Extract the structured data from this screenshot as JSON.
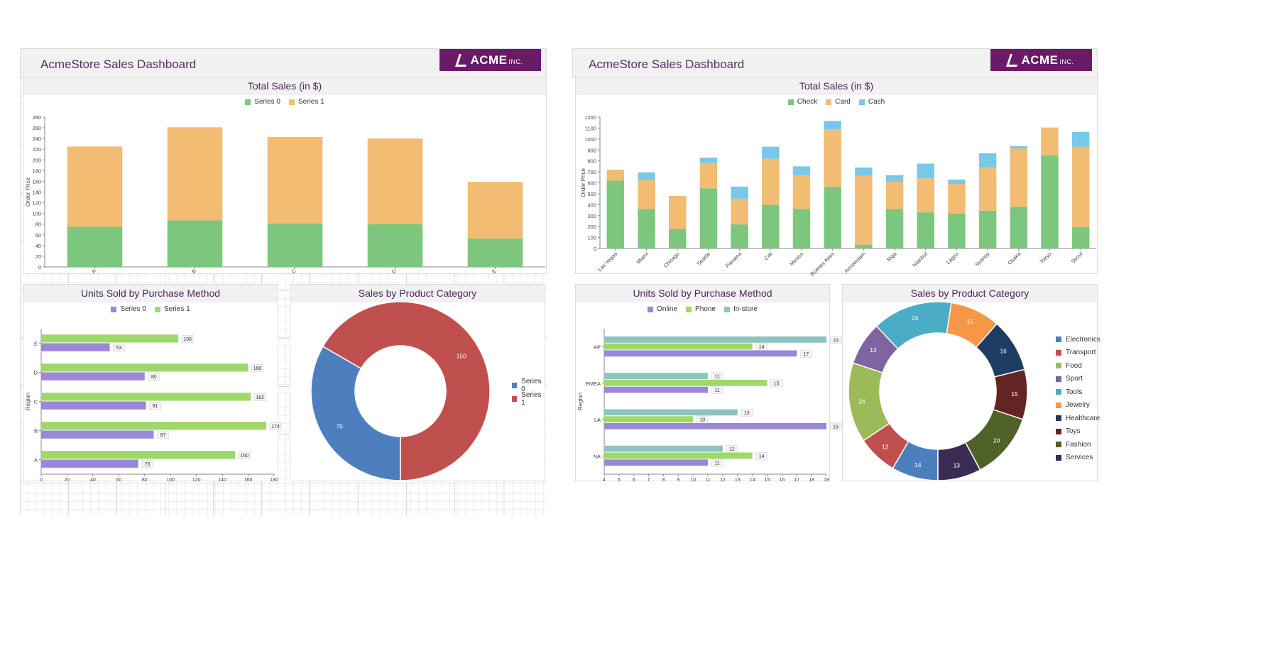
{
  "dashboards": [
    {
      "header": {
        "title": "AcmeStore Sales Dashboard",
        "logo": "ACME",
        "logo_suffix": "INC."
      },
      "total_sales": {
        "title": "Total Sales (in $)",
        "chart_data": {
          "type": "bar",
          "stacked": true,
          "categories": [
            "A",
            "B",
            "C",
            "D",
            "E"
          ],
          "series": [
            {
              "name": "Series 0",
              "color": "#7dc67d",
              "values": [
                75,
                87,
                81,
                80,
                53
              ]
            },
            {
              "name": "Series 1",
              "color": "#f2bc72",
              "values": [
                150,
                174,
                162,
                160,
                106
              ]
            }
          ],
          "ylabel": "Order Price",
          "ylim": [
            0,
            280
          ],
          "yticks": [
            0,
            20,
            40,
            60,
            80,
            100,
            120,
            140,
            160,
            180,
            200,
            220,
            240,
            260,
            280
          ],
          "legend": "top"
        }
      },
      "units_sold": {
        "title": "Units Sold by Purchase Method",
        "chart_data": {
          "type": "bar",
          "orientation": "horizontal",
          "categories": [
            "A",
            "B",
            "C",
            "D",
            "E"
          ],
          "series": [
            {
              "name": "Series 0",
              "color": "#9b87d8",
              "values": [
                75,
                87,
                81,
                80,
                53
              ]
            },
            {
              "name": "Series 1",
              "color": "#9ed86a",
              "values": [
                150,
                174,
                162,
                160,
                106
              ]
            }
          ],
          "ylabel": "Region",
          "xlim": [
            0,
            180
          ],
          "xticks": [
            0,
            20,
            40,
            60,
            80,
            100,
            120,
            140,
            160,
            180
          ],
          "data_labels": true,
          "legend": "top"
        }
      },
      "product_category": {
        "title": "Sales by Product Category",
        "chart_data": {
          "type": "pie",
          "donut": true,
          "labels": [
            "Series 0",
            "Series 1"
          ],
          "values": [
            75,
            150
          ],
          "colors": [
            "#4d7fbf",
            "#c0504d"
          ],
          "legend": "right"
        }
      }
    },
    {
      "header": {
        "title": "AcmeStore Sales Dashboard",
        "logo": "ACME",
        "logo_suffix": "INC."
      },
      "total_sales": {
        "title": "Total Sales (in $)",
        "chart_data": {
          "type": "bar",
          "stacked": true,
          "categories": [
            "Las Vegas",
            "Miami",
            "Chicago",
            "Seattle",
            "Panama",
            "Cali",
            "Mexico",
            "Buenos Aires",
            "Amsterdam",
            "Riga",
            "Istanbul",
            "Lagos",
            "Sydney",
            "Osaka",
            "Tokyo",
            "Seoul"
          ],
          "series": [
            {
              "name": "Check",
              "color": "#7dc67d",
              "values": [
                620,
                360,
                180,
                550,
                220,
                400,
                360,
                565,
                35,
                360,
                330,
                320,
                345,
                380,
                850,
                195
              ]
            },
            {
              "name": "Card",
              "color": "#f2bc72",
              "values": [
                100,
                265,
                300,
                230,
                235,
                420,
                310,
                525,
                630,
                250,
                310,
                270,
                395,
                535,
                255,
                735
              ]
            },
            {
              "name": "Cash",
              "color": "#76c9e8",
              "values": [
                0,
                70,
                0,
                50,
                110,
                110,
                80,
                75,
                75,
                60,
                135,
                40,
                130,
                20,
                0,
                135
              ]
            }
          ],
          "ylabel": "Order Price",
          "ylim": [
            0,
            1200
          ],
          "yticks": [
            0,
            100,
            200,
            300,
            400,
            500,
            600,
            700,
            800,
            900,
            1000,
            1100,
            1200
          ],
          "legend": "top"
        }
      },
      "units_sold": {
        "title": "Units Sold by Purchase Method",
        "chart_data": {
          "type": "bar",
          "orientation": "horizontal",
          "categories": [
            "NA",
            "LA",
            "EMEA",
            "AP"
          ],
          "series": [
            {
              "name": "Online",
              "color": "#9b87d8",
              "values": [
                11,
                19,
                11,
                17
              ]
            },
            {
              "name": "Phone",
              "color": "#9ed86a",
              "values": [
                14,
                10,
                15,
                14
              ]
            },
            {
              "name": "In-store",
              "color": "#8cc4c0",
              "values": [
                12,
                13,
                11,
                19
              ]
            }
          ],
          "ylabel": "Region",
          "xlim": [
            4,
            19
          ],
          "xticks": [
            4,
            5,
            6,
            7,
            8,
            9,
            10,
            11,
            12,
            13,
            14,
            15,
            16,
            17,
            18,
            19
          ],
          "data_labels": true,
          "legend": "top"
        }
      },
      "product_category": {
        "title": "Sales by Product Category",
        "chart_data": {
          "type": "pie",
          "donut": true,
          "labels": [
            "Electronics",
            "Transport",
            "Food",
            "Sport",
            "Tools",
            "Jewelry",
            "Healthcare",
            "Toys",
            "Fashion",
            "Services"
          ],
          "values": [
            14,
            12,
            24,
            13,
            24,
            15,
            16,
            15,
            20,
            13
          ],
          "colors": [
            "#4d7fbf",
            "#c0504d",
            "#9bbb59",
            "#8064a2",
            "#4bacc6",
            "#f79646",
            "#1f3c63",
            "#632523",
            "#4f6228",
            "#3a2c52"
          ],
          "legend": "right"
        }
      }
    }
  ]
}
